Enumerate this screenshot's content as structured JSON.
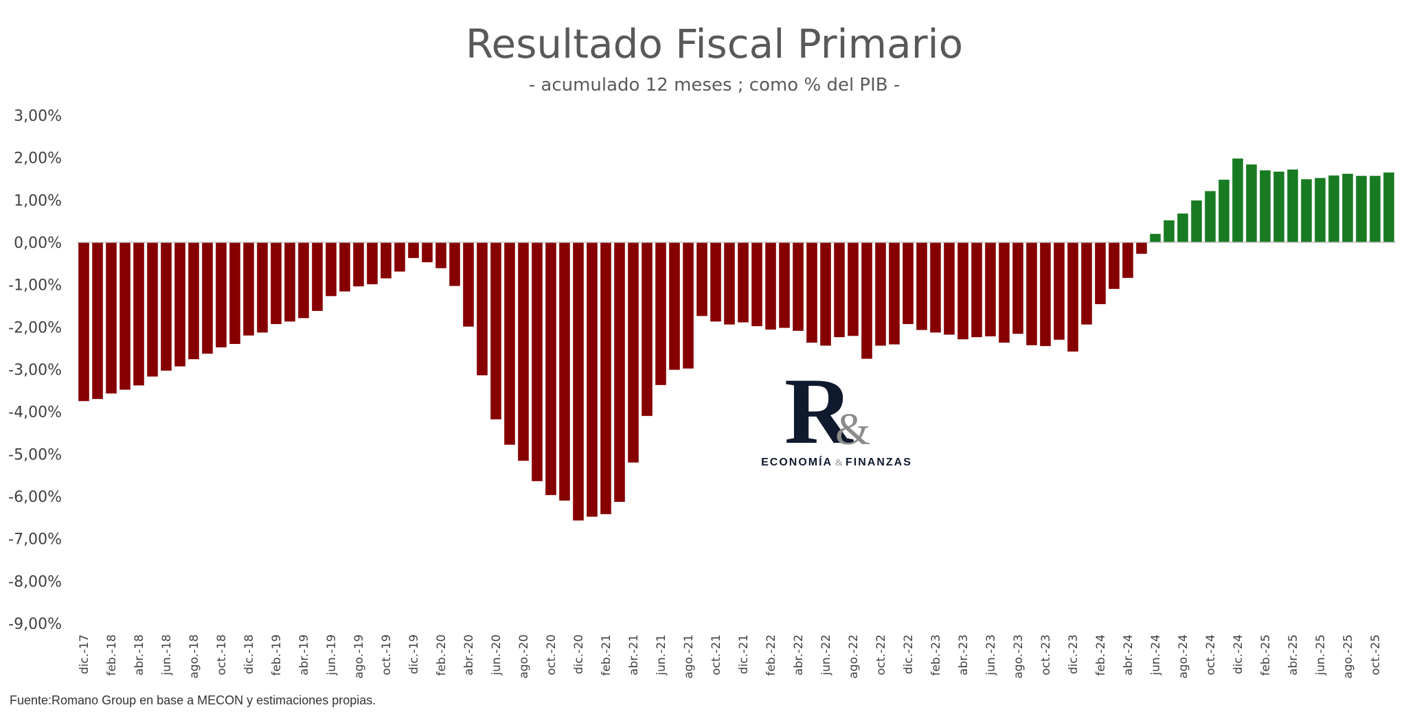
{
  "colors": {
    "negative": "#870000",
    "positive": "#187b22",
    "axis": "#bfbfbf",
    "text": "#404040"
  },
  "logo": {
    "mark_r": "R",
    "mark_amp": "&",
    "text_left": "ECONOMÍA",
    "text_amp": "&",
    "text_right": "FINANZAS"
  },
  "source": "Fuente:Romano Group en base a MECON y estimaciones propias.",
  "chart_data": {
    "type": "bar",
    "title": "Resultado Fiscal Primario",
    "subtitle": "- acumulado 12 meses ; como % del PIB -",
    "xlabel": "",
    "ylabel": "",
    "ylim": [
      -9,
      3
    ],
    "yticks": [
      3,
      2,
      1,
      0,
      -1,
      -2,
      -3,
      -4,
      -5,
      -6,
      -7,
      -8,
      -9
    ],
    "ytick_labels": [
      "3,00%",
      "2,00%",
      "1,00%",
      "0,00%",
      "-1,00%",
      "-2,00%",
      "-3,00%",
      "-4,00%",
      "-5,00%",
      "-6,00%",
      "-7,00%",
      "-8,00%",
      "-9,00%"
    ],
    "grid": false,
    "legend": "none",
    "categories": [
      "dic.-17",
      "ene.-18",
      "feb.-18",
      "mar.-18",
      "abr.-18",
      "may.-18",
      "jun.-18",
      "jul.-18",
      "ago.-18",
      "sep.-18",
      "oct.-18",
      "nov.-18",
      "dic.-18",
      "ene.-19",
      "feb.-19",
      "mar.-19",
      "abr.-19",
      "may.-19",
      "jun.-19",
      "jul.-19",
      "ago.-19",
      "sep.-19",
      "oct.-19",
      "nov.-19",
      "dic.-19",
      "ene.-20",
      "feb.-20",
      "mar.-20",
      "abr.-20",
      "may.-20",
      "jun.-20",
      "jul.-20",
      "ago.-20",
      "sep.-20",
      "oct.-20",
      "nov.-20",
      "dic.-20",
      "ene.-21",
      "feb.-21",
      "mar.-21",
      "abr.-21",
      "may.-21",
      "jun.-21",
      "jul.-21",
      "ago.-21",
      "sep.-21",
      "oct.-21",
      "nov.-21",
      "dic.-21",
      "ene.-22",
      "feb.-22",
      "mar.-22",
      "abr.-22",
      "may.-22",
      "jun.-22",
      "jul.-22",
      "ago.-22",
      "sep.-22",
      "oct.-22",
      "nov.-22",
      "dic.-22",
      "ene.-23",
      "feb.-23",
      "mar.-23",
      "abr.-23",
      "may.-23",
      "jun.-23",
      "jul.-23",
      "ago.-23",
      "sep.-23",
      "oct.-23",
      "nov.-23",
      "dic.-23",
      "ene.-24",
      "feb.-24",
      "mar.-24",
      "abr.-24",
      "may.-24",
      "jun.-24",
      "jul.-24",
      "ago.-24",
      "sep.-24",
      "oct.-24",
      "nov.-24",
      "dic.-24",
      "ene.-25",
      "feb.-25",
      "mar.-25",
      "abr.-25",
      "may.-25",
      "jun.-25",
      "jul.-25",
      "ago.-25",
      "sep.-25",
      "oct.-25",
      "nov.-25"
    ],
    "shown_tick_labels": [
      "dic.-17",
      "feb.-18",
      "abr.-18",
      "jun.-18",
      "ago.-18",
      "oct.-18",
      "dic.-18",
      "feb.-19",
      "abr.-19",
      "jun.-19",
      "ago.-19",
      "oct.-19",
      "dic.-19",
      "feb.-20",
      "abr.-20",
      "jun.-20",
      "ago.-20",
      "oct.-20",
      "dic.-20",
      "feb.-21",
      "abr.-21",
      "jun.-21",
      "ago.-21",
      "oct.-21",
      "dic.-21",
      "feb.-22",
      "abr.-22",
      "jun.-22",
      "ago.-22",
      "oct.-22",
      "dic.-22",
      "feb.-23",
      "abr.-23",
      "jun.-23",
      "ago.-23",
      "oct.-23",
      "dic.-23",
      "feb.-24",
      "abr.-24",
      "jun.-24",
      "ago.-24",
      "oct.-24",
      "dic.-24",
      "feb.-25",
      "abr.-25",
      "jun.-25",
      "ago.-25",
      "oct.-25"
    ],
    "values": [
      -3.75,
      -3.7,
      -3.57,
      -3.48,
      -3.38,
      -3.17,
      -3.03,
      -2.93,
      -2.76,
      -2.63,
      -2.48,
      -2.4,
      -2.2,
      -2.13,
      -1.93,
      -1.87,
      -1.79,
      -1.62,
      -1.27,
      -1.16,
      -1.04,
      -0.99,
      -0.85,
      -0.69,
      -0.37,
      -0.47,
      -0.61,
      -1.03,
      -1.99,
      -3.14,
      -4.18,
      -4.78,
      -5.16,
      -5.64,
      -5.97,
      -6.1,
      -6.57,
      -6.48,
      -6.42,
      -6.13,
      -5.2,
      -4.1,
      -3.37,
      -3.01,
      -2.98,
      -1.74,
      -1.87,
      -1.94,
      -1.89,
      -1.98,
      -2.06,
      -2.02,
      -2.09,
      -2.37,
      -2.44,
      -2.24,
      -2.21,
      -2.75,
      -2.44,
      -2.41,
      -1.93,
      -2.07,
      -2.13,
      -2.18,
      -2.29,
      -2.24,
      -2.22,
      -2.37,
      -2.16,
      -2.43,
      -2.45,
      -2.3,
      -2.58,
      -1.94,
      -1.46,
      -1.1,
      -0.84,
      -0.27,
      0.2,
      0.52,
      0.68,
      0.99,
      1.21,
      1.48,
      1.98,
      1.84,
      1.7,
      1.67,
      1.72,
      1.49,
      1.52,
      1.58,
      1.62,
      1.57,
      1.57,
      1.65
    ]
  }
}
